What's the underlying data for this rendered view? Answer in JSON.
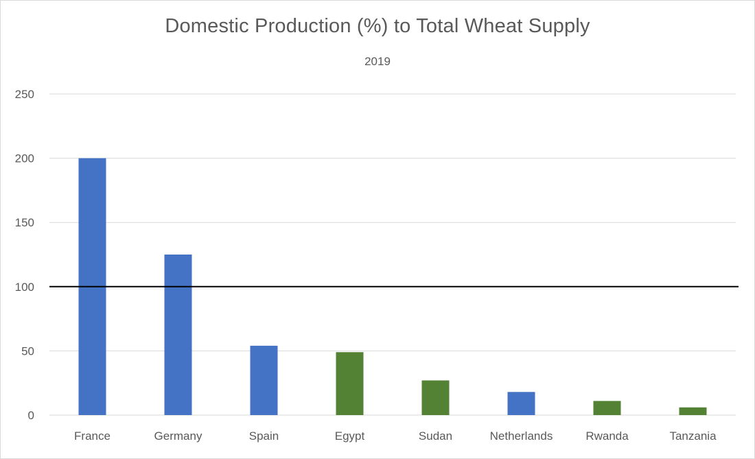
{
  "chart_data": {
    "type": "bar",
    "title": "Domestic Production (%) to Total Wheat Supply",
    "subtitle": "2019",
    "xlabel": "",
    "ylabel": "",
    "categories": [
      "France",
      "Germany",
      "Spain",
      "Egypt",
      "Sudan",
      "Netherlands",
      "Rwanda",
      "Tanzania"
    ],
    "values": [
      200,
      125,
      54,
      49,
      27,
      18,
      11,
      6
    ],
    "bar_colors": [
      "#4472c4",
      "#4472c4",
      "#4472c4",
      "#548235",
      "#548235",
      "#4472c4",
      "#548235",
      "#548235"
    ],
    "ylim": [
      0,
      250
    ],
    "yticks": [
      0,
      50,
      100,
      150,
      200,
      250
    ],
    "grid": true,
    "reference_line": {
      "value": 100,
      "color": "#000000"
    },
    "legend": "none"
  }
}
